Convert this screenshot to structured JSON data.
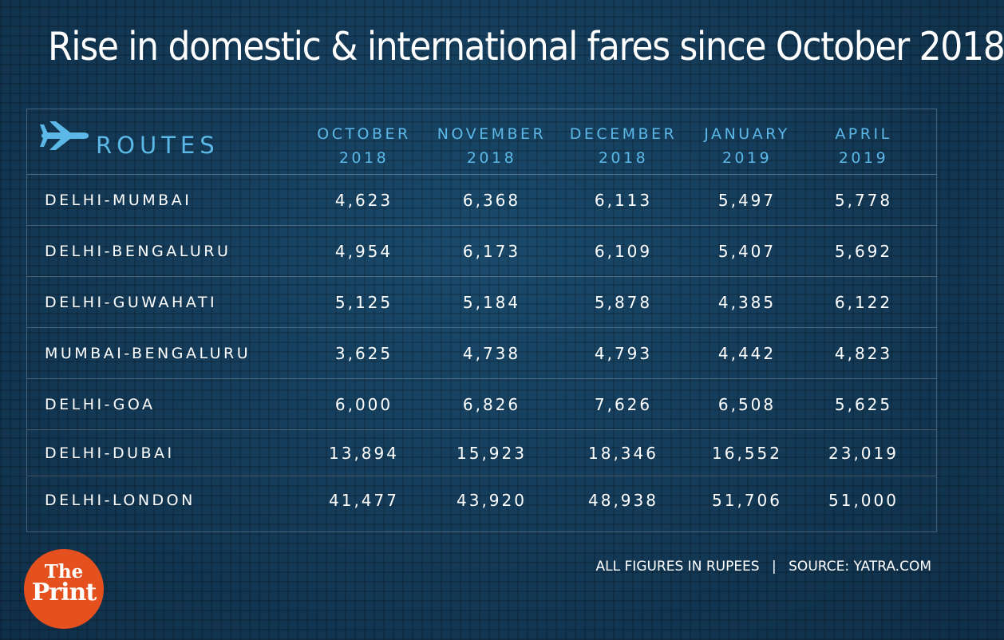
{
  "title": "Rise in domestic & international fares since October 2018",
  "table": {
    "routes_label": "ROUTES",
    "routes_icon": "airplane-icon",
    "columns": [
      {
        "line1": "OCTOBER",
        "line2": "2018"
      },
      {
        "line1": "NOVEMBER",
        "line2": "2018"
      },
      {
        "line1": "DECEMBER",
        "line2": "2018"
      },
      {
        "line1": "JANUARY",
        "line2": "2019"
      },
      {
        "line1": "APRIL",
        "line2": "2019"
      }
    ],
    "rows": [
      {
        "route": "DELHI-MUMBAI",
        "values": [
          "4,623",
          "6,368",
          "6,113",
          "5,497",
          "5,778"
        ]
      },
      {
        "route": "DELHI-BENGALURU",
        "values": [
          "4,954",
          "6,173",
          "6,109",
          "5,407",
          "5,692"
        ]
      },
      {
        "route": "DELHI-GUWAHATI",
        "values": [
          "5,125",
          "5,184",
          "5,878",
          "4,385",
          "6,122"
        ]
      },
      {
        "route": "MUMBAI-BENGALURU",
        "values": [
          "3,625",
          "4,738",
          "4,793",
          "4,442",
          "4,823"
        ]
      },
      {
        "route": "DELHI-GOA",
        "values": [
          "6,000",
          "6,826",
          "7,626",
          "6,508",
          "5,625"
        ]
      },
      {
        "route": "DELHI-DUBAI",
        "values": [
          "13,894",
          "15,923",
          "18,346",
          "16,552",
          "23,019"
        ]
      },
      {
        "route": "DELHI-LONDON",
        "values": [
          "41,477",
          "43,920",
          "48,938",
          "51,706",
          "51,000"
        ]
      }
    ]
  },
  "footer": {
    "units_note": "ALL FIGURES IN RUPEES",
    "separator": "|",
    "source": "SOURCE: YATRA.COM"
  },
  "logo": {
    "line1": "The",
    "line2": "Print"
  },
  "colors": {
    "background": "#153d5c",
    "accent": "#5cb8e6",
    "text": "#ffffff",
    "logo": "#e5501f"
  },
  "chart_data": {
    "type": "table",
    "title": "Rise in domestic & international fares since October 2018",
    "columns": [
      "ROUTES",
      "OCTOBER 2018",
      "NOVEMBER 2018",
      "DECEMBER 2018",
      "JANUARY 2019",
      "APRIL 2019"
    ],
    "rows": [
      [
        "DELHI-MUMBAI",
        4623,
        6368,
        6113,
        5497,
        5778
      ],
      [
        "DELHI-BENGALURU",
        4954,
        6173,
        6109,
        5407,
        5692
      ],
      [
        "DELHI-GUWAHATI",
        5125,
        5184,
        5878,
        4385,
        6122
      ],
      [
        "MUMBAI-BENGALURU",
        3625,
        4738,
        4793,
        4442,
        4823
      ],
      [
        "DELHI-GOA",
        6000,
        6826,
        7626,
        6508,
        5625
      ],
      [
        "DELHI-DUBAI",
        13894,
        15923,
        18346,
        16552,
        23019
      ],
      [
        "DELHI-LONDON",
        41477,
        43920,
        48938,
        51706,
        51000
      ]
    ]
  }
}
